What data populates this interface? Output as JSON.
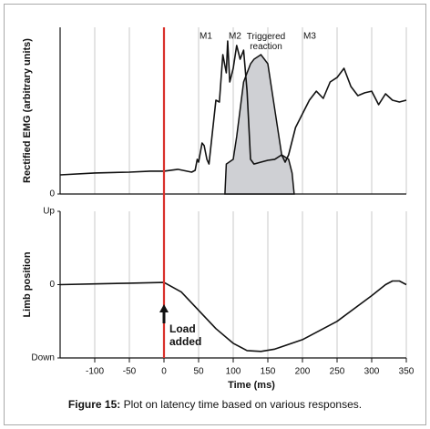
{
  "chart_data": [
    {
      "type": "line",
      "ylabel": "Rectified EMG (arbitrary units)",
      "ylim": [
        0,
        10
      ],
      "yticks": [
        0
      ],
      "grid": true,
      "annotations": [
        "M1",
        "M2",
        "Triggered reaction",
        "M3"
      ],
      "series": [
        {
          "color": "#111111",
          "x": [
            -150,
            -100,
            -50,
            -20,
            0,
            20,
            40,
            45,
            48,
            50,
            55,
            58,
            62,
            65,
            70,
            75,
            80,
            85,
            90,
            92,
            95,
            100,
            105,
            110,
            115,
            120,
            123,
            125,
            130,
            140,
            150,
            160,
            170,
            175,
            180,
            190,
            200,
            210,
            220,
            230,
            240,
            250,
            260,
            270,
            280,
            290,
            300,
            310,
            320,
            330,
            340,
            350
          ],
          "values": [
            1.15,
            1.26,
            1.31,
            1.37,
            1.37,
            1.48,
            1.31,
            1.42,
            2.08,
            1.91,
            3.06,
            2.9,
            2.08,
            1.8,
            3.72,
            5.63,
            5.52,
            8.36,
            7.27,
            9.18,
            6.72,
            7.54,
            8.91,
            8.09,
            8.63,
            6.17,
            3.72,
            2.08,
            1.8,
            1.91,
            2.02,
            2.08,
            2.35,
            1.91,
            2.35,
            3.99,
            4.81,
            5.63,
            6.17,
            5.74,
            6.72,
            6.99,
            7.54,
            6.45,
            5.9,
            6.07,
            6.17,
            5.36,
            6.01,
            5.63,
            5.52,
            5.63
          ]
        },
        {
          "type": "area",
          "color": "#cfd0d4",
          "x": [
            88,
            90,
            100,
            105,
            110,
            115,
            120,
            125,
            130,
            140,
            145,
            150,
            160,
            170,
            180,
            185,
            188
          ],
          "values": [
            0,
            1.8,
            2.08,
            3.44,
            5.08,
            6.72,
            7.27,
            7.81,
            8.09,
            8.36,
            8.09,
            7.81,
            5.08,
            2.35,
            2.08,
            1.26,
            0
          ]
        }
      ]
    },
    {
      "type": "line",
      "ylabel": "Limb position",
      "xlabel": "Time (ms)",
      "xlim": [
        -150,
        350
      ],
      "xticks": [
        -100,
        -50,
        0,
        50,
        100,
        150,
        200,
        250,
        300,
        350
      ],
      "ylim": [
        -1,
        1
      ],
      "yticks": [
        {
          "value": 1,
          "label": "Up"
        },
        0,
        {
          "value": -1,
          "label": "Down"
        }
      ],
      "grid": true,
      "event_x": 0,
      "event_color": "#d9312b",
      "annotation": "Load added",
      "series": [
        {
          "color": "#111111",
          "x": [
            -150,
            -100,
            -50,
            0,
            25,
            50,
            75,
            100,
            120,
            140,
            160,
            200,
            250,
            300,
            320,
            330,
            340,
            350
          ],
          "values": [
            0.0,
            0.01,
            0.02,
            0.03,
            -0.1,
            -0.35,
            -0.6,
            -0.8,
            -0.9,
            -0.91,
            -0.88,
            -0.75,
            -0.5,
            -0.15,
            0.0,
            0.05,
            0.05,
            0.0
          ]
        }
      ]
    },
    {
      "type": "caption",
      "label": "Figure 15:",
      "text": " Plot on latency time based on various responses."
    }
  ]
}
